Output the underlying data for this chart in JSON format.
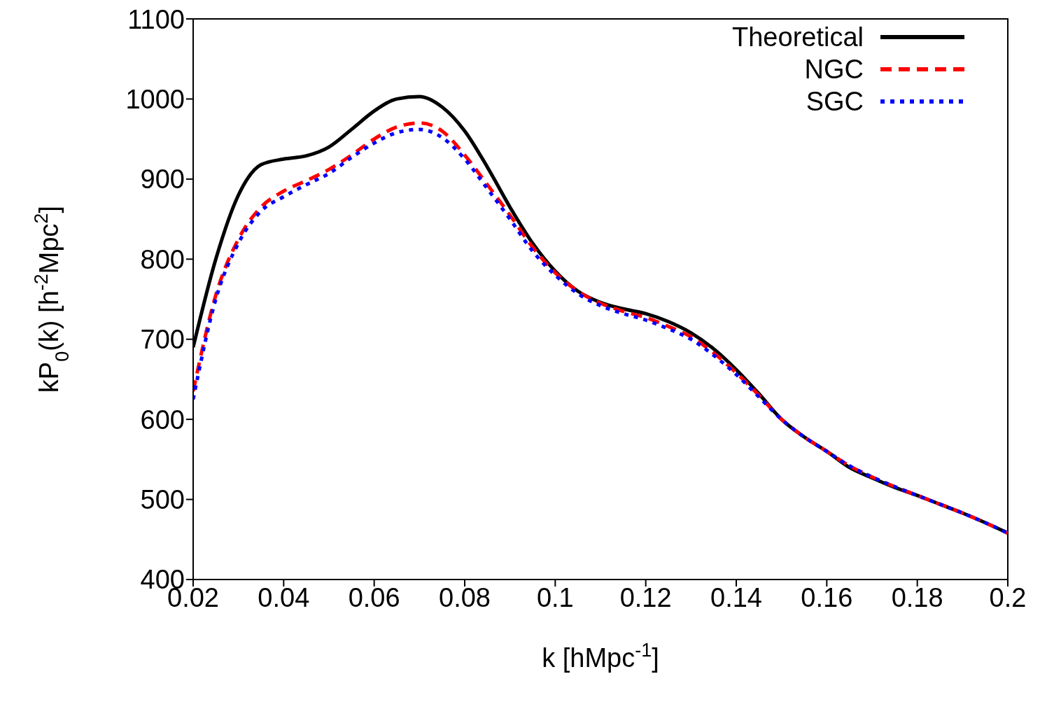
{
  "chart_data": {
    "type": "line",
    "xlabel": "k [hMpc$^{-1}$]",
    "ylabel": "kP$_{0}$(k) [h$^{-2}$Mpc$^{2}$]",
    "x": [
      0.02,
      0.025,
      0.03,
      0.035,
      0.04,
      0.045,
      0.05,
      0.055,
      0.06,
      0.065,
      0.07,
      0.075,
      0.08,
      0.085,
      0.09,
      0.095,
      0.1,
      0.105,
      0.11,
      0.115,
      0.12,
      0.125,
      0.13,
      0.135,
      0.14,
      0.145,
      0.15,
      0.155,
      0.16,
      0.165,
      0.17,
      0.175,
      0.18,
      0.185,
      0.19,
      0.195,
      0.2
    ],
    "series": [
      {
        "name": "Theoretical",
        "color": "#000000",
        "line_style": "solid",
        "values": [
          690,
          800,
          880,
          918,
          925,
          929,
          940,
          962,
          985,
          1000,
          1003,
          990,
          960,
          915,
          865,
          820,
          785,
          760,
          746,
          738,
          732,
          722,
          708,
          688,
          662,
          632,
          600,
          578,
          560,
          540,
          527,
          515,
          505,
          494,
          483,
          471,
          458
        ]
      },
      {
        "name": "NGC",
        "color": "#ff0000",
        "line_style": "dashed",
        "values": [
          635,
          755,
          825,
          865,
          885,
          898,
          912,
          930,
          950,
          965,
          970,
          960,
          930,
          893,
          855,
          815,
          783,
          760,
          745,
          735,
          727,
          716,
          703,
          683,
          658,
          630,
          600,
          578,
          560,
          542,
          528,
          516,
          505,
          494,
          483,
          471,
          458
        ]
      },
      {
        "name": "SGC",
        "color": "#0000ff",
        "line_style": "dotted",
        "values": [
          625,
          750,
          820,
          860,
          878,
          893,
          907,
          927,
          945,
          958,
          962,
          952,
          925,
          888,
          850,
          810,
          780,
          757,
          742,
          732,
          724,
          713,
          700,
          680,
          656,
          628,
          600,
          578,
          560,
          542,
          528,
          516,
          505,
          494,
          483,
          471,
          458
        ]
      }
    ],
    "xlim": [
      0.02,
      0.2
    ],
    "xticks": [
      0.02,
      0.04,
      0.06,
      0.08,
      0.1,
      0.12,
      0.14,
      0.16,
      0.18,
      0.2
    ],
    "ylim": [
      400,
      1100
    ],
    "yticks": [
      400,
      500,
      600,
      700,
      800,
      900,
      1000,
      1100
    ],
    "legend": "top right",
    "marker": "none"
  }
}
